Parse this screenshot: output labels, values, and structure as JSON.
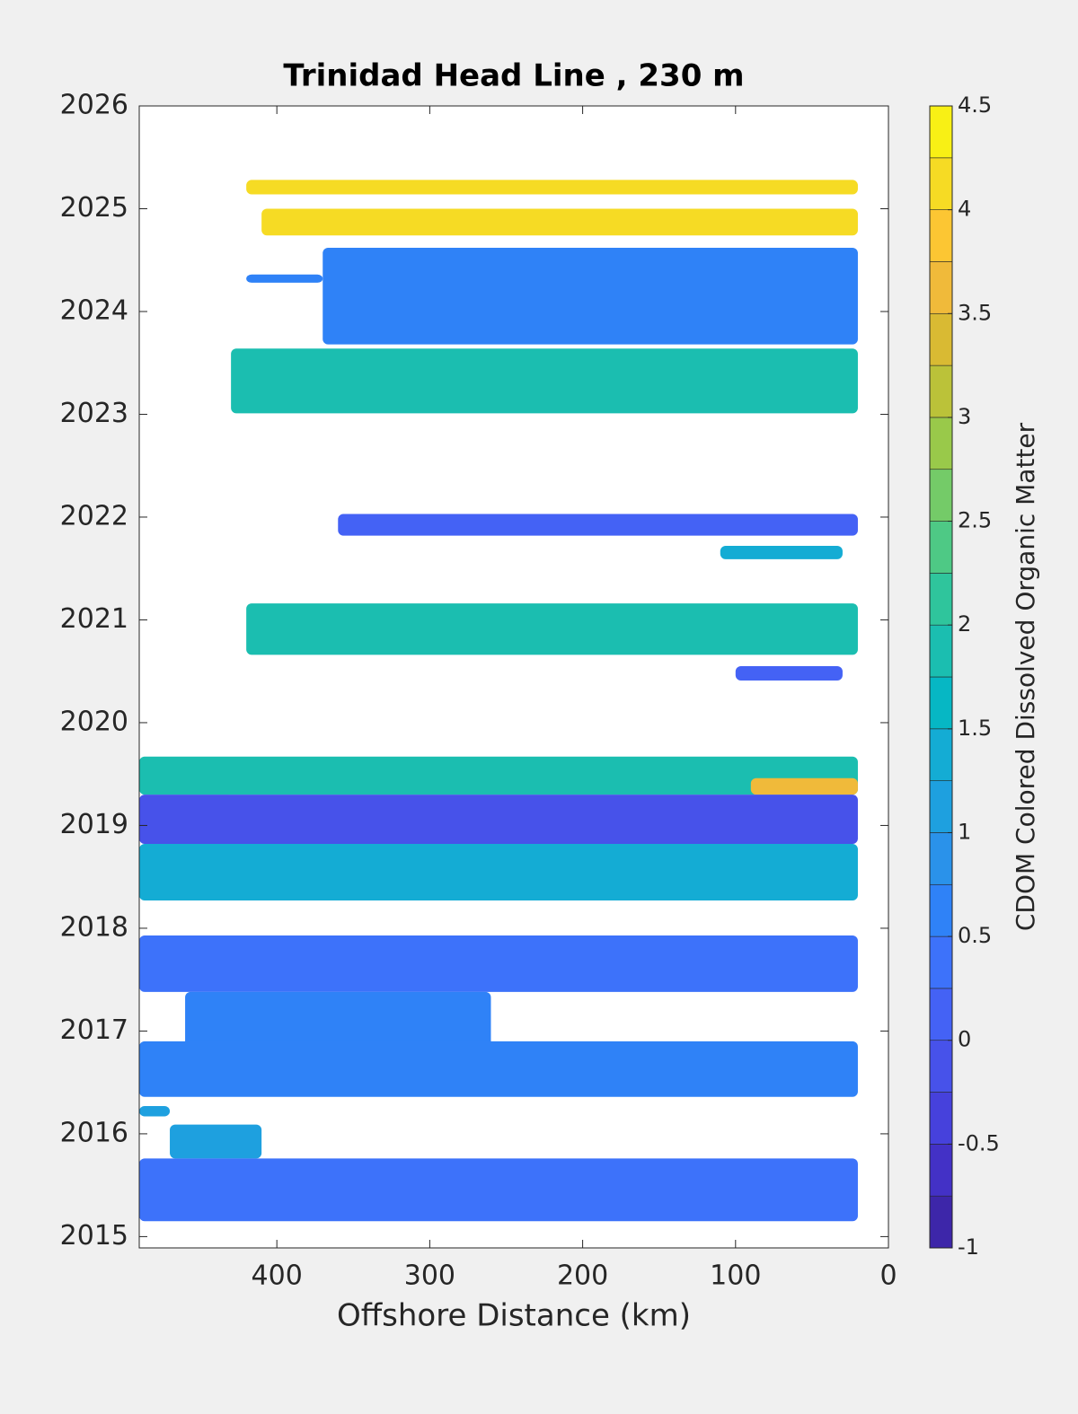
{
  "chart_data": {
    "type": "contour",
    "title": "Trinidad Head Line , 230 m",
    "xlabel": "Offshore Distance (km)",
    "colorbar_label": "CDOM Colored Dissolved Organic Matter",
    "xlim": [
      490,
      0
    ],
    "xticks": [
      400,
      300,
      200,
      100,
      0
    ],
    "ylim": [
      2014.89,
      2026
    ],
    "yticks": [
      2015,
      2016,
      2017,
      2018,
      2019,
      2020,
      2021,
      2022,
      2023,
      2024,
      2025,
      2026
    ],
    "clim": [
      -1,
      4.5
    ],
    "cticks": [
      -1,
      -0.5,
      0,
      0.5,
      1,
      1.5,
      2,
      2.5,
      3,
      3.5,
      4,
      4.5
    ],
    "colormap": [
      "#3d26a9",
      "#4331c6",
      "#4641dc",
      "#4752ea",
      "#4462f5",
      "#3d72fa",
      "#2f82f7",
      "#2a92ea",
      "#1ea0df",
      "#14acd4",
      "#06b7c4",
      "#1bbeb0",
      "#2fc59c",
      "#4ec985",
      "#74cb68",
      "#99c94a",
      "#bbc239",
      "#d9ba33",
      "#f0ba3a",
      "#fcc633",
      "#f6db24",
      "#f8f015"
    ],
    "regions": [
      {
        "x": [
          420,
          20
        ],
        "y": [
          2025.14,
          2025.28
        ],
        "value": 4.0
      },
      {
        "x": [
          410,
          20
        ],
        "y": [
          2024.74,
          2025.0
        ],
        "value": 4.1
      },
      {
        "x": [
          370,
          20
        ],
        "y": [
          2023.68,
          2024.62
        ],
        "value": 0.6
      },
      {
        "x": [
          420,
          370
        ],
        "y": [
          2024.28,
          2024.36
        ],
        "value": 0.6
      },
      {
        "x": [
          430,
          20
        ],
        "y": [
          2023.01,
          2023.64
        ],
        "value": 1.9
      },
      {
        "x": [
          360,
          20
        ],
        "y": [
          2021.82,
          2022.03
        ],
        "value": 0.2
      },
      {
        "x": [
          110,
          30
        ],
        "y": [
          2021.59,
          2021.72
        ],
        "value": 1.3
      },
      {
        "x": [
          420,
          20
        ],
        "y": [
          2020.66,
          2021.16
        ],
        "value": 1.9
      },
      {
        "x": [
          100,
          30
        ],
        "y": [
          2020.41,
          2020.55
        ],
        "value": 0.1
      },
      {
        "x": [
          490,
          20
        ],
        "y": [
          2019.3,
          2019.67
        ],
        "value": 1.9
      },
      {
        "x": [
          90,
          20
        ],
        "y": [
          2019.3,
          2019.46
        ],
        "value": 3.6
      },
      {
        "x": [
          490,
          20
        ],
        "y": [
          2018.82,
          2019.3
        ],
        "value": -0.1
      },
      {
        "x": [
          490,
          20
        ],
        "y": [
          2018.27,
          2018.82
        ],
        "value": 1.3
      },
      {
        "x": [
          490,
          20
        ],
        "y": [
          2017.38,
          2017.93
        ],
        "value": 0.4
      },
      {
        "x": [
          460,
          260
        ],
        "y": [
          2016.85,
          2017.38
        ],
        "value": 0.6
      },
      {
        "x": [
          490,
          20
        ],
        "y": [
          2016.36,
          2016.9
        ],
        "value": 0.5
      },
      {
        "x": [
          490,
          470
        ],
        "y": [
          2016.17,
          2016.27
        ],
        "value": 1.0
      },
      {
        "x": [
          470,
          410
        ],
        "y": [
          2015.76,
          2016.09
        ],
        "value": 1.0
      },
      {
        "x": [
          490,
          20
        ],
        "y": [
          2015.15,
          2015.76
        ],
        "value": 0.3
      }
    ]
  }
}
